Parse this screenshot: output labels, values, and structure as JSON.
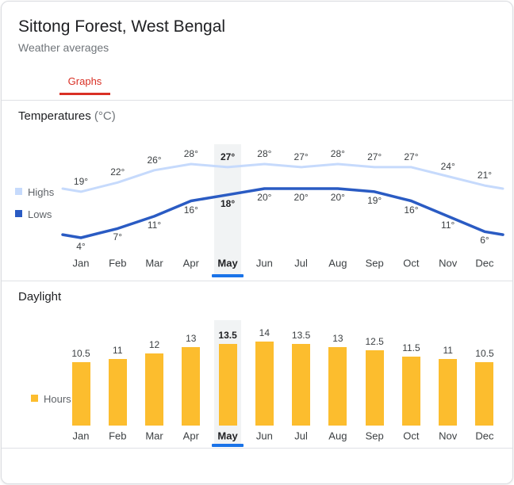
{
  "header": {
    "title": "Sittong Forest, West Bengal",
    "subtitle": "Weather averages"
  },
  "tabs": [
    {
      "label": "Graphs",
      "active": true,
      "accent_color": "#d93025"
    }
  ],
  "highlight": {
    "band_color": "#f1f3f4",
    "underline_color": "#1a73e8",
    "month": "May"
  },
  "chart_data": [
    {
      "type": "line",
      "title": "Temperatures",
      "unit_label": "(°C)",
      "categories": [
        "Jan",
        "Feb",
        "Mar",
        "Apr",
        "May",
        "Jun",
        "Jul",
        "Aug",
        "Sep",
        "Oct",
        "Nov",
        "Dec"
      ],
      "series": [
        {
          "name": "Highs",
          "color": "#c6dafc",
          "values": [
            19,
            22,
            26,
            28,
            27,
            28,
            27,
            28,
            27,
            27,
            24,
            21
          ]
        },
        {
          "name": "Lows",
          "color": "#2a5bc3",
          "values": [
            4,
            7,
            11,
            16,
            18,
            20,
            20,
            20,
            19,
            16,
            11,
            6
          ]
        }
      ],
      "value_suffix": "°",
      "highlighted_category": "May",
      "legend_position": "left",
      "grid": false,
      "ylim": [
        0,
        30
      ]
    },
    {
      "type": "bar",
      "title": "Daylight",
      "categories": [
        "Jan",
        "Feb",
        "Mar",
        "Apr",
        "May",
        "Jun",
        "Jul",
        "Aug",
        "Sep",
        "Oct",
        "Nov",
        "Dec"
      ],
      "series": [
        {
          "name": "Hours",
          "color": "#fcbd2e",
          "values": [
            10.5,
            11,
            12,
            13,
            13.5,
            14,
            13.5,
            13,
            12.5,
            11.5,
            11,
            10.5
          ]
        }
      ],
      "value_suffix": "",
      "highlighted_category": "May",
      "legend_position": "left",
      "grid": false,
      "ylim": [
        0,
        14
      ]
    }
  ]
}
